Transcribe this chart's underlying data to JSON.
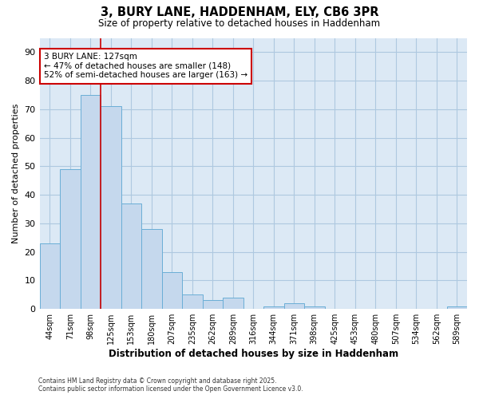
{
  "title_line1": "3, BURY LANE, HADDENHAM, ELY, CB6 3PR",
  "title_line2": "Size of property relative to detached houses in Haddenham",
  "xlabel": "Distribution of detached houses by size in Haddenham",
  "ylabel": "Number of detached properties",
  "categories": [
    "44sqm",
    "71sqm",
    "98sqm",
    "125sqm",
    "153sqm",
    "180sqm",
    "207sqm",
    "235sqm",
    "262sqm",
    "289sqm",
    "316sqm",
    "344sqm",
    "371sqm",
    "398sqm",
    "425sqm",
    "453sqm",
    "480sqm",
    "507sqm",
    "534sqm",
    "562sqm",
    "589sqm"
  ],
  "values": [
    23,
    49,
    75,
    71,
    37,
    28,
    13,
    5,
    3,
    4,
    0,
    1,
    2,
    1,
    0,
    0,
    0,
    0,
    0,
    0,
    1
  ],
  "bar_color": "#c5d8ed",
  "bar_edge_color": "#6aaed6",
  "vline_position": 3,
  "annotation_text_line1": "3 BURY LANE: 127sqm",
  "annotation_text_line2": "← 47% of detached houses are smaller (148)",
  "annotation_text_line3": "52% of semi-detached houses are larger (163) →",
  "annotation_box_color": "#ffffff",
  "annotation_box_edge": "#cc0000",
  "vline_color": "#cc0000",
  "grid_color": "#aec8e0",
  "background_color": "#ffffff",
  "plot_bg_color": "#dce9f5",
  "ylim": [
    0,
    95
  ],
  "yticks": [
    0,
    10,
    20,
    30,
    40,
    50,
    60,
    70,
    80,
    90
  ],
  "footer_line1": "Contains HM Land Registry data © Crown copyright and database right 2025.",
  "footer_line2": "Contains public sector information licensed under the Open Government Licence v3.0."
}
